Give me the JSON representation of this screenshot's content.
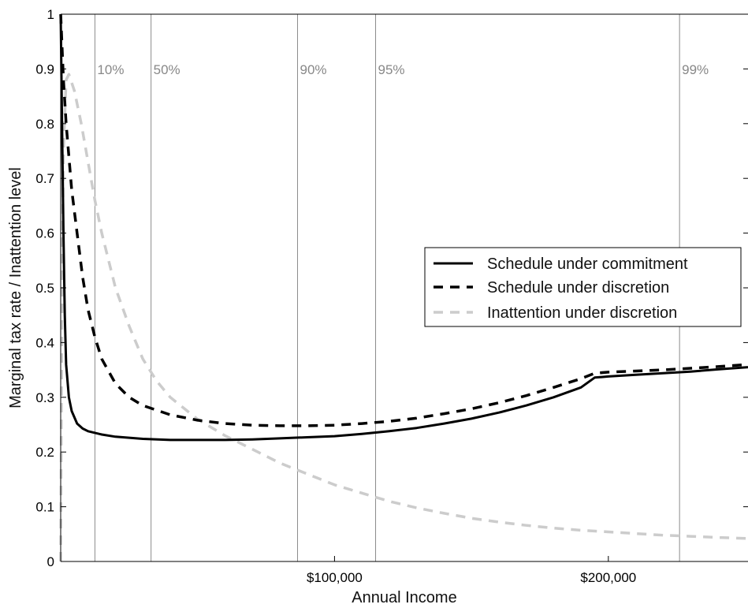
{
  "chart_data": {
    "type": "line",
    "xlabel": "Annual Income",
    "ylabel": "Marginal tax rate / Inattention level",
    "xlim": [
      0,
      251000
    ],
    "ylim": [
      0,
      1
    ],
    "yticks": [
      0,
      0.1,
      0.2,
      0.3,
      0.4,
      0.5,
      0.6,
      0.7,
      0.8,
      0.9,
      1
    ],
    "ytick_labels": [
      "0",
      "0.1",
      "0.2",
      "0.3",
      "0.4",
      "0.5",
      "0.6",
      "0.7",
      "0.8",
      "0.9",
      "1"
    ],
    "xticks": [
      100000,
      200000
    ],
    "xtick_labels": [
      "$100,000",
      "$200,000"
    ],
    "percentile_lines": [
      {
        "label": "10%",
        "x": 12500
      },
      {
        "label": "50%",
        "x": 33000
      },
      {
        "label": "90%",
        "x": 86500
      },
      {
        "label": "95%",
        "x": 115000
      },
      {
        "label": "99%",
        "x": 226000
      }
    ],
    "legend_position": "center-right",
    "series": [
      {
        "name": "Schedule under commitment",
        "color": "#000000",
        "style": "solid",
        "x": [
          0,
          500,
          1000,
          1500,
          2000,
          3000,
          4000,
          6000,
          8000,
          10000,
          15000,
          20000,
          30000,
          40000,
          50000,
          60000,
          70000,
          80000,
          90000,
          100000,
          110000,
          120000,
          130000,
          140000,
          150000,
          160000,
          170000,
          180000,
          190000,
          195000,
          200000,
          210000,
          220000,
          230000,
          240000,
          251000
        ],
        "y": [
          1.0,
          0.8,
          0.6,
          0.45,
          0.36,
          0.3,
          0.275,
          0.252,
          0.243,
          0.238,
          0.232,
          0.228,
          0.224,
          0.222,
          0.222,
          0.222,
          0.223,
          0.225,
          0.227,
          0.229,
          0.233,
          0.238,
          0.244,
          0.252,
          0.261,
          0.272,
          0.285,
          0.3,
          0.318,
          0.336,
          0.338,
          0.341,
          0.344,
          0.347,
          0.351,
          0.355
        ]
      },
      {
        "name": "Schedule under discretion",
        "color": "#000000",
        "style": "dashed",
        "x": [
          0,
          1000,
          2000,
          3000,
          4000,
          6000,
          8000,
          10000,
          12500,
          15000,
          20000,
          25000,
          30000,
          40000,
          50000,
          60000,
          70000,
          80000,
          90000,
          100000,
          110000,
          120000,
          130000,
          140000,
          150000,
          160000,
          170000,
          180000,
          190000,
          195000,
          200000,
          210000,
          220000,
          230000,
          240000,
          251000
        ],
        "y": [
          1.0,
          0.88,
          0.8,
          0.74,
          0.68,
          0.6,
          0.52,
          0.46,
          0.41,
          0.37,
          0.325,
          0.3,
          0.285,
          0.268,
          0.258,
          0.252,
          0.249,
          0.248,
          0.248,
          0.249,
          0.252,
          0.256,
          0.262,
          0.27,
          0.279,
          0.29,
          0.303,
          0.318,
          0.334,
          0.344,
          0.346,
          0.348,
          0.35,
          0.353,
          0.356,
          0.36
        ]
      },
      {
        "name": "Inattention under discretion",
        "color": "#cccccc",
        "style": "dashed",
        "x": [
          0,
          500,
          1000,
          2000,
          3000,
          5000,
          7500,
          10000,
          12500,
          15000,
          20000,
          25000,
          30000,
          35000,
          40000,
          50000,
          60000,
          70000,
          80000,
          90000,
          100000,
          110000,
          120000,
          130000,
          140000,
          150000,
          160000,
          170000,
          180000,
          190000,
          200000,
          210000,
          220000,
          230000,
          240000,
          251000
        ],
        "y": [
          0.0,
          0.5,
          0.75,
          0.88,
          0.89,
          0.86,
          0.8,
          0.73,
          0.66,
          0.6,
          0.5,
          0.43,
          0.37,
          0.33,
          0.3,
          0.26,
          0.23,
          0.205,
          0.18,
          0.16,
          0.14,
          0.125,
          0.11,
          0.098,
          0.088,
          0.079,
          0.072,
          0.066,
          0.061,
          0.057,
          0.054,
          0.051,
          0.048,
          0.046,
          0.044,
          0.042
        ]
      }
    ]
  }
}
